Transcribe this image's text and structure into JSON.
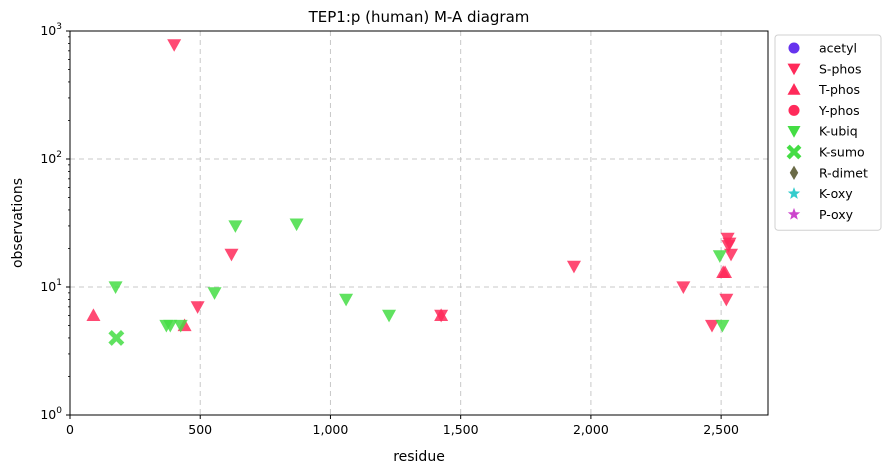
{
  "chart_data": {
    "type": "scatter",
    "title": "TEP1:p (human) M-A diagram",
    "xlabel": "residue",
    "ylabel": "observations",
    "xlim": [
      0,
      2680
    ],
    "ylim": [
      1,
      1000
    ],
    "yscale": "log",
    "xticks": [
      0,
      500,
      1000,
      1500,
      2000,
      2500
    ],
    "xtick_labels": [
      "0",
      "500",
      "1,000",
      "1,500",
      "2,000",
      "2,500"
    ],
    "yticks": [
      1,
      10,
      100,
      1000
    ],
    "grid": true,
    "legend_position": "outside-right",
    "series": [
      {
        "name": "acetyl",
        "marker": "circle",
        "color": "#6633ee",
        "points": []
      },
      {
        "name": "S-phos",
        "marker": "triangle-down",
        "color": "#ff2a5a",
        "points": [
          [
            400,
            780
          ],
          [
            490,
            7
          ],
          [
            620,
            18
          ],
          [
            1425,
            6
          ],
          [
            1935,
            14.5
          ],
          [
            2355,
            10
          ],
          [
            2465,
            5
          ],
          [
            2520,
            8
          ],
          [
            2525,
            24
          ],
          [
            2528,
            21
          ],
          [
            2532,
            22
          ],
          [
            2538,
            18
          ]
        ]
      },
      {
        "name": "T-phos",
        "marker": "triangle-up",
        "color": "#ff2a5a",
        "points": [
          [
            90,
            6
          ],
          [
            440,
            5
          ],
          [
            1425,
            6
          ],
          [
            2508,
            13
          ],
          [
            2515,
            13
          ]
        ]
      },
      {
        "name": "Y-phos",
        "marker": "circle",
        "color": "#ff2a5a",
        "points": []
      },
      {
        "name": "K-ubiq",
        "marker": "triangle-down",
        "color": "#44dd44",
        "points": [
          [
            175,
            10
          ],
          [
            370,
            5
          ],
          [
            385,
            5
          ],
          [
            425,
            5
          ],
          [
            555,
            9
          ],
          [
            635,
            30
          ],
          [
            870,
            31
          ],
          [
            1060,
            8
          ],
          [
            1225,
            6
          ],
          [
            2495,
            17.5
          ],
          [
            2505,
            5
          ]
        ]
      },
      {
        "name": "K-sumo",
        "marker": "x-cross",
        "color": "#44dd44",
        "points": [
          [
            178,
            4
          ]
        ]
      },
      {
        "name": "R-dimet",
        "marker": "diamond",
        "color": "#6b6b47",
        "points": []
      },
      {
        "name": "K-oxy",
        "marker": "star",
        "color": "#33cccc",
        "points": []
      },
      {
        "name": "P-oxy",
        "marker": "star",
        "color": "#cc44cc",
        "points": []
      }
    ]
  }
}
